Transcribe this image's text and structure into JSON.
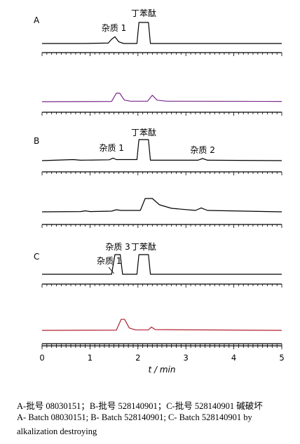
{
  "chart_data": {
    "type": "line",
    "xlabel": "t / min",
    "xlim": [
      0,
      5
    ],
    "x_ticks": [
      "0",
      "1",
      "2",
      "3",
      "4",
      "5"
    ],
    "panels": [
      {
        "label": "A",
        "traces": [
          {
            "color": "#000000",
            "points": [
              [
                0,
                0
              ],
              [
                0.9,
                0
              ],
              [
                1.38,
                0.02
              ],
              [
                1.45,
                0.2
              ],
              [
                1.52,
                0.32
              ],
              [
                1.6,
                0.08
              ],
              [
                1.7,
                0
              ],
              [
                1.98,
                0
              ],
              [
                2.02,
                1
              ],
              [
                2.22,
                1
              ],
              [
                2.26,
                0
              ],
              [
                5,
                0
              ]
            ]
          },
          {
            "color": "#7a2a8c",
            "points": [
              [
                0,
                0
              ],
              [
                1.45,
                0.02
              ],
              [
                1.55,
                0.55
              ],
              [
                1.62,
                0.55
              ],
              [
                1.72,
                0.1
              ],
              [
                1.85,
                0.03
              ],
              [
                2.2,
                0.03
              ],
              [
                2.3,
                0.42
              ],
              [
                2.4,
                0.1
              ],
              [
                2.6,
                0.03
              ],
              [
                5,
                0.02
              ]
            ]
          }
        ],
        "annotations": [
          {
            "text": "杂质 1",
            "x": 1.5
          },
          {
            "text": "丁苯酞",
            "x": 2.12
          }
        ]
      },
      {
        "label": "B",
        "traces": [
          {
            "color": "#000000",
            "points": [
              [
                0,
                0
              ],
              [
                0.65,
                0.05
              ],
              [
                0.8,
                0.02
              ],
              [
                1.4,
                0.04
              ],
              [
                1.48,
                0.12
              ],
              [
                1.55,
                0.05
              ],
              [
                1.98,
                0.05
              ],
              [
                2.02,
                1
              ],
              [
                2.22,
                1
              ],
              [
                2.26,
                0.02
              ],
              [
                3.25,
                0.02
              ],
              [
                3.35,
                0.1
              ],
              [
                3.45,
                0.02
              ],
              [
                5,
                0
              ]
            ]
          },
          {
            "color": "#000000",
            "points": [
              [
                0,
                0
              ],
              [
                0.8,
                0.02
              ],
              [
                0.9,
                0.07
              ],
              [
                1.0,
                0.02
              ],
              [
                1.45,
                0.05
              ],
              [
                1.55,
                0.15
              ],
              [
                1.65,
                0.1
              ],
              [
                2.05,
                0.1
              ],
              [
                2.15,
                0.95
              ],
              [
                2.3,
                0.95
              ],
              [
                2.45,
                0.5
              ],
              [
                2.7,
                0.25
              ],
              [
                3.2,
                0.1
              ],
              [
                3.32,
                0.28
              ],
              [
                3.45,
                0.1
              ],
              [
                5,
                0
              ]
            ]
          }
        ],
        "annotations": [
          {
            "text": "杂质 1",
            "x": 1.45
          },
          {
            "text": "丁苯酞",
            "x": 2.12
          },
          {
            "text": "杂质 2",
            "x": 3.35
          }
        ]
      },
      {
        "label": "C",
        "traces": [
          {
            "color": "#000000",
            "points": [
              [
                0,
                0
              ],
              [
                1.45,
                0
              ],
              [
                1.52,
                1
              ],
              [
                1.63,
                1
              ],
              [
                1.68,
                0
              ],
              [
                1.98,
                0
              ],
              [
                2.02,
                1
              ],
              [
                2.22,
                1
              ],
              [
                2.26,
                0
              ],
              [
                5,
                0
              ]
            ]
          },
          {
            "color": "#b02030",
            "points": [
              [
                0,
                0
              ],
              [
                1.55,
                0.02
              ],
              [
                1.65,
                0.72
              ],
              [
                1.72,
                0.72
              ],
              [
                1.82,
                0.15
              ],
              [
                1.95,
                0.03
              ],
              [
                2.22,
                0.03
              ],
              [
                2.28,
                0.22
              ],
              [
                2.36,
                0.05
              ],
              [
                5,
                0
              ]
            ]
          }
        ],
        "annotations": [
          {
            "text": "杂质 1",
            "x": 1.4
          },
          {
            "text": "杂质 3",
            "x": 1.58
          },
          {
            "text": "丁苯酞",
            "x": 2.12
          }
        ]
      }
    ]
  },
  "captions": {
    "line1": "A-批号 08030151；B-批号 528140901；C-批号 528140901 碱破坏",
    "line2": "A- Batch 08030151; B- Batch 528140901; C- Batch 528140901 by",
    "line3": "alkalization destroying"
  }
}
